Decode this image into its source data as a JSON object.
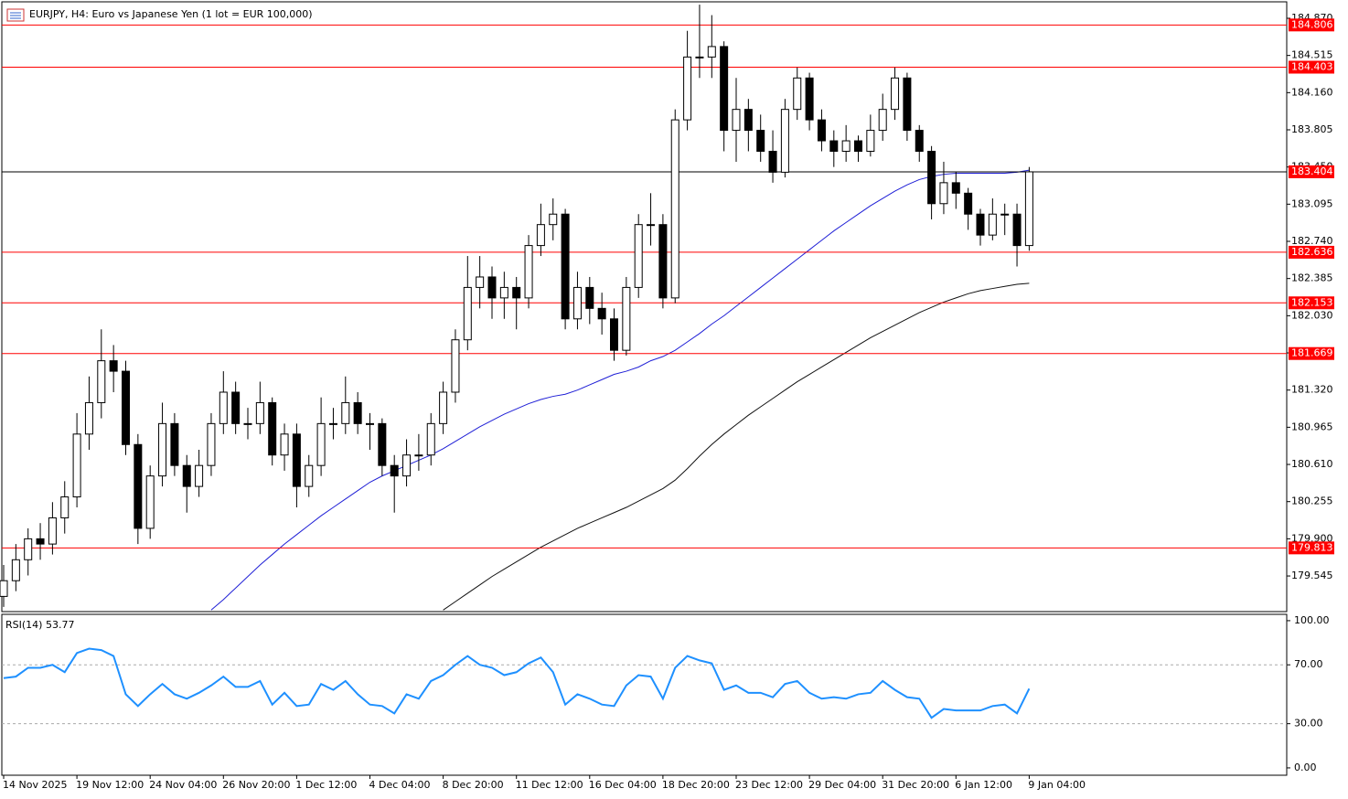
{
  "chart_data": {
    "type": "candlestick",
    "title": "EURJPY, H4:  Euro vs Japanese Yen (1 lot = EUR 100,000)",
    "categories": [
      "14 Nov 2025",
      null,
      null,
      null,
      null,
      null,
      "19 Nov 12:00",
      null,
      null,
      null,
      null,
      null,
      "24 Nov 04:00",
      null,
      null,
      null,
      null,
      null,
      "26 Nov 20:00",
      null,
      null,
      null,
      null,
      null,
      "1 Dec 12:00",
      null,
      null,
      null,
      null,
      null,
      "4 Dec 04:00",
      null,
      null,
      null,
      null,
      null,
      "8 Dec 20:00",
      null,
      null,
      null,
      null,
      null,
      "11 Dec 12:00",
      null,
      null,
      null,
      null,
      null,
      "16 Dec 04:00",
      null,
      null,
      null,
      null,
      null,
      "18 Dec 20:00",
      null,
      null,
      null,
      null,
      null,
      "23 Dec 12:00",
      null,
      null,
      null,
      null,
      null,
      "29 Dec 04:00",
      null,
      null,
      null,
      null,
      null,
      "31 Dec 20:00",
      null,
      null,
      null,
      null,
      null,
      "6 Jan 12:00",
      null,
      null,
      null,
      null,
      null,
      "9 Jan 04:00"
    ],
    "candles": [
      [
        179.35,
        179.65,
        179.25,
        179.5
      ],
      [
        179.5,
        179.85,
        179.4,
        179.7
      ],
      [
        179.7,
        180.0,
        179.55,
        179.9
      ],
      [
        179.9,
        180.05,
        179.7,
        179.85
      ],
      [
        179.85,
        180.25,
        179.75,
        180.1
      ],
      [
        180.1,
        180.45,
        179.95,
        180.3
      ],
      [
        180.3,
        181.1,
        180.2,
        180.9
      ],
      [
        180.9,
        181.45,
        180.75,
        181.2
      ],
      [
        181.2,
        181.9,
        181.05,
        181.6
      ],
      [
        181.6,
        181.75,
        181.3,
        181.5
      ],
      [
        181.5,
        181.6,
        180.7,
        180.8
      ],
      [
        180.8,
        180.9,
        179.85,
        180.0
      ],
      [
        180.0,
        180.6,
        179.9,
        180.5
      ],
      [
        180.5,
        181.2,
        180.4,
        181.0
      ],
      [
        181.0,
        181.1,
        180.5,
        180.6
      ],
      [
        180.6,
        180.7,
        180.15,
        180.4
      ],
      [
        180.4,
        180.75,
        180.3,
        180.6
      ],
      [
        180.6,
        181.1,
        180.5,
        181.0
      ],
      [
        181.0,
        181.5,
        180.9,
        181.3
      ],
      [
        181.3,
        181.4,
        180.9,
        181.0
      ],
      [
        181.0,
        181.15,
        180.85,
        181.0
      ],
      [
        181.0,
        181.4,
        180.9,
        181.2
      ],
      [
        181.2,
        181.25,
        180.6,
        180.7
      ],
      [
        180.7,
        181.0,
        180.55,
        180.9
      ],
      [
        180.9,
        181.0,
        180.2,
        180.4
      ],
      [
        180.4,
        180.7,
        180.3,
        180.6
      ],
      [
        180.6,
        181.25,
        180.5,
        181.0
      ],
      [
        181.0,
        181.15,
        180.85,
        181.0
      ],
      [
        181.0,
        181.45,
        180.9,
        181.2
      ],
      [
        181.2,
        181.3,
        180.9,
        181.0
      ],
      [
        181.0,
        181.1,
        180.75,
        181.0
      ],
      [
        181.0,
        181.05,
        180.5,
        180.6
      ],
      [
        180.6,
        180.7,
        180.15,
        180.5
      ],
      [
        180.5,
        180.85,
        180.4,
        180.7
      ],
      [
        180.7,
        180.9,
        180.55,
        180.7
      ],
      [
        180.7,
        181.1,
        180.6,
        181.0
      ],
      [
        181.0,
        181.4,
        180.9,
        181.3
      ],
      [
        181.3,
        181.9,
        181.2,
        181.8
      ],
      [
        181.8,
        182.6,
        181.7,
        182.3
      ],
      [
        182.3,
        182.6,
        182.1,
        182.4
      ],
      [
        182.4,
        182.5,
        182.0,
        182.2
      ],
      [
        182.2,
        182.45,
        182.0,
        182.3
      ],
      [
        182.3,
        182.4,
        181.9,
        182.2
      ],
      [
        182.2,
        182.8,
        182.1,
        182.7
      ],
      [
        182.7,
        183.1,
        182.6,
        182.9
      ],
      [
        182.9,
        183.15,
        182.75,
        183.0
      ],
      [
        183.0,
        183.05,
        181.9,
        182.0
      ],
      [
        182.0,
        182.45,
        181.9,
        182.3
      ],
      [
        182.3,
        182.4,
        181.95,
        182.1
      ],
      [
        182.1,
        182.25,
        181.85,
        182.0
      ],
      [
        182.0,
        182.1,
        181.6,
        181.7
      ],
      [
        181.7,
        182.4,
        181.65,
        182.3
      ],
      [
        182.3,
        183.0,
        182.2,
        182.9
      ],
      [
        182.9,
        183.2,
        182.7,
        182.9
      ],
      [
        182.9,
        183.0,
        182.1,
        182.2
      ],
      [
        182.2,
        184.0,
        182.15,
        183.9
      ],
      [
        183.9,
        184.75,
        183.8,
        184.5
      ],
      [
        184.5,
        185.0,
        184.3,
        184.5
      ],
      [
        184.5,
        184.9,
        184.3,
        184.6
      ],
      [
        184.6,
        184.65,
        183.6,
        183.8
      ],
      [
        183.8,
        184.3,
        183.5,
        184.0
      ],
      [
        184.0,
        184.1,
        183.6,
        183.8
      ],
      [
        183.8,
        183.95,
        183.5,
        183.6
      ],
      [
        183.6,
        183.8,
        183.3,
        183.4
      ],
      [
        183.4,
        184.1,
        183.35,
        184.0
      ],
      [
        184.0,
        184.4,
        183.9,
        184.3
      ],
      [
        184.3,
        184.35,
        183.8,
        183.9
      ],
      [
        183.9,
        184.0,
        183.6,
        183.7
      ],
      [
        183.7,
        183.8,
        183.45,
        183.6
      ],
      [
        183.6,
        183.85,
        183.5,
        183.7
      ],
      [
        183.7,
        183.75,
        183.5,
        183.6
      ],
      [
        183.6,
        183.95,
        183.55,
        183.8
      ],
      [
        183.8,
        184.15,
        183.7,
        184.0
      ],
      [
        184.0,
        184.4,
        183.9,
        184.3
      ],
      [
        184.3,
        184.35,
        183.7,
        183.8
      ],
      [
        183.8,
        183.85,
        183.5,
        183.6
      ],
      [
        183.6,
        183.65,
        182.95,
        183.1
      ],
      [
        183.1,
        183.5,
        183.0,
        183.3
      ],
      [
        183.3,
        183.4,
        183.05,
        183.2
      ],
      [
        183.2,
        183.25,
        182.85,
        183.0
      ],
      [
        183.0,
        183.05,
        182.7,
        182.8
      ],
      [
        182.8,
        183.15,
        182.75,
        183.0
      ],
      [
        183.0,
        183.1,
        182.8,
        183.0
      ],
      [
        183.0,
        183.1,
        182.5,
        182.7
      ],
      [
        182.7,
        183.45,
        182.65,
        183.404
      ]
    ],
    "series": [
      {
        "color": "#1f1fd6",
        "values": [
          null,
          null,
          null,
          null,
          null,
          null,
          null,
          null,
          null,
          null,
          null,
          null,
          null,
          null,
          null,
          null,
          null,
          179.22,
          179.32,
          179.43,
          179.54,
          179.65,
          179.75,
          179.85,
          179.94,
          180.03,
          180.12,
          180.2,
          180.28,
          180.36,
          180.44,
          180.5,
          180.55,
          180.6,
          180.65,
          180.7,
          180.76,
          180.83,
          180.9,
          180.97,
          181.03,
          181.09,
          181.14,
          181.19,
          181.23,
          181.26,
          181.28,
          181.32,
          181.37,
          181.42,
          181.47,
          181.5,
          181.54,
          181.6,
          181.64,
          181.7,
          181.78,
          181.86,
          181.95,
          182.03,
          182.12,
          182.21,
          182.3,
          182.39,
          182.48,
          182.57,
          182.66,
          182.75,
          182.84,
          182.92,
          183.0,
          183.08,
          183.15,
          183.22,
          183.28,
          183.33,
          183.36,
          183.38,
          183.39,
          183.39,
          183.39,
          183.39,
          183.39,
          183.4,
          183.42
        ]
      },
      {
        "color": "#111111",
        "values": [
          null,
          null,
          null,
          null,
          null,
          null,
          null,
          null,
          null,
          null,
          null,
          null,
          null,
          null,
          null,
          null,
          null,
          null,
          null,
          null,
          null,
          null,
          null,
          null,
          null,
          null,
          null,
          null,
          null,
          null,
          null,
          null,
          null,
          null,
          null,
          null,
          179.22,
          179.3,
          179.38,
          179.46,
          179.54,
          179.61,
          179.68,
          179.75,
          179.82,
          179.88,
          179.94,
          180.0,
          180.05,
          180.1,
          180.15,
          180.2,
          180.26,
          180.32,
          180.38,
          180.46,
          180.57,
          180.69,
          180.8,
          180.9,
          180.99,
          181.08,
          181.16,
          181.24,
          181.32,
          181.4,
          181.47,
          181.54,
          181.61,
          181.68,
          181.75,
          181.82,
          181.88,
          181.94,
          182.0,
          182.06,
          182.11,
          182.16,
          182.2,
          182.24,
          182.27,
          182.29,
          182.31,
          182.33,
          182.34
        ]
      }
    ],
    "levels": [
      {
        "value": 184.806,
        "color": "#ff0000"
      },
      {
        "value": 184.403,
        "color": "#ff0000"
      },
      {
        "value": 183.404,
        "color": "#000000"
      },
      {
        "value": 182.636,
        "color": "#ff0000"
      },
      {
        "value": 182.153,
        "color": "#ff0000"
      },
      {
        "value": 181.669,
        "color": "#ff0000"
      },
      {
        "value": 179.813,
        "color": "#ff0000"
      }
    ],
    "ylim": [
      179.205,
      185.027
    ],
    "yticks": [
      {
        "value": 184.87,
        "label": "184.870"
      },
      184.515,
      {
        "value": 184.16,
        "label": "184.160"
      },
      183.805,
      {
        "value": 183.45,
        "label": "183.450"
      },
      183.095,
      {
        "value": 182.74,
        "label": "182.740"
      },
      182.385,
      {
        "value": 182.03,
        "label": "182.030"
      },
      181.675,
      {
        "value": 181.32,
        "label": "181.320"
      },
      180.965,
      {
        "value": 180.61,
        "label": "180.610"
      },
      180.255,
      {
        "value": 179.9,
        "label": "179.900"
      },
      179.545
    ],
    "rsi": {
      "label": "RSI(14) 53.77",
      "color": "#1e90ff",
      "values": [
        61,
        62,
        68,
        68,
        70,
        65,
        78,
        81,
        80,
        76,
        50,
        42,
        50,
        57,
        50,
        47,
        51,
        56,
        62,
        55,
        55,
        59,
        43,
        51,
        42,
        43,
        57,
        53,
        59,
        50,
        43,
        42,
        37,
        50,
        47,
        59,
        63,
        70,
        76,
        70,
        68,
        63,
        65,
        71,
        75,
        65,
        43,
        50,
        47,
        43,
        42,
        56,
        63,
        62,
        47,
        68,
        76,
        73,
        71,
        53,
        56,
        51,
        51,
        48,
        57,
        59,
        51,
        47,
        48,
        47,
        50,
        51,
        59,
        53,
        48,
        47,
        34,
        40,
        39,
        39,
        39,
        42,
        43,
        37,
        53.77
      ],
      "ylim": [
        -5,
        104.3
      ],
      "yticks": [
        {
          "value": 100,
          "label": "100.00"
        },
        {
          "value": 70,
          "label": "70.00"
        },
        {
          "value": 30,
          "label": "30.00"
        },
        {
          "value": 0,
          "label": "0.00"
        }
      ],
      "levels": [
        70,
        30
      ]
    }
  }
}
